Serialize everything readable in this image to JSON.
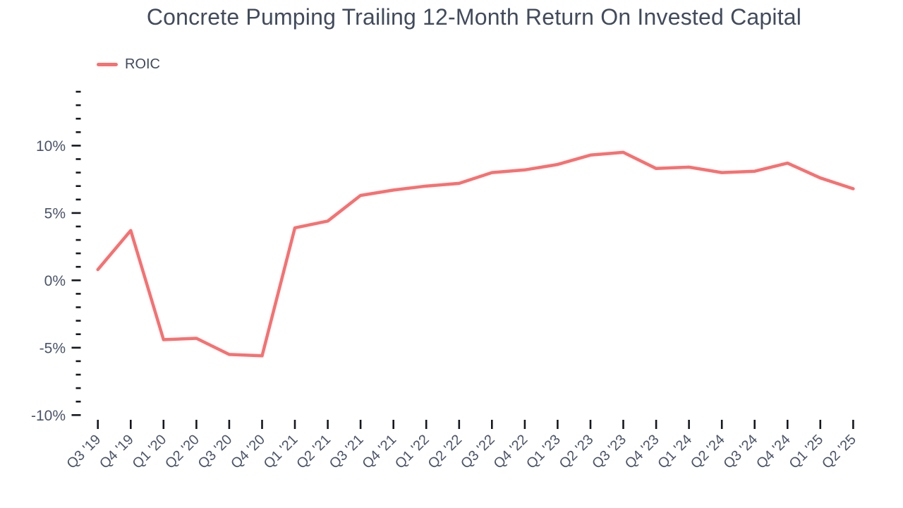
{
  "page": {
    "background": "#ffffff"
  },
  "style": {
    "title_color": "#414b5c",
    "axis_text_color": "#4a5468",
    "tick_color": "#15181e",
    "series_color": "#f87070"
  },
  "chart_data": {
    "type": "line",
    "title": "Concrete Pumping Trailing 12-Month Return On Invested Capital",
    "xlabel": "",
    "ylabel": "",
    "unit": "%",
    "grid": false,
    "legend": {
      "position": "top-left",
      "entries": [
        "ROIC"
      ]
    },
    "categories": [
      "Q3 '19",
      "Q4 '19",
      "Q1 '20",
      "Q2 '20",
      "Q3 '20",
      "Q4 '20",
      "Q1 '21",
      "Q2 '21",
      "Q3 '21",
      "Q4 '21",
      "Q1 '22",
      "Q2 '22",
      "Q3 '22",
      "Q4 '22",
      "Q1 '23",
      "Q2 '23",
      "Q3 '23",
      "Q4 '23",
      "Q1 '24",
      "Q2 '24",
      "Q3 '24",
      "Q4 '24",
      "Q1 '25",
      "Q2 '25"
    ],
    "series": [
      {
        "name": "ROIC",
        "color": "#f87070",
        "values": [
          0.8,
          3.7,
          -4.4,
          -4.3,
          -5.5,
          -5.6,
          3.9,
          4.4,
          6.3,
          6.7,
          7.0,
          7.2,
          8.0,
          8.2,
          8.6,
          9.3,
          9.5,
          8.3,
          8.4,
          8.0,
          8.1,
          8.7,
          7.6,
          6.8
        ]
      }
    ],
    "y_axis": {
      "min": -10,
      "max": 14,
      "minor_tick_step": 1,
      "major_tick_values": [
        -10,
        -5,
        0,
        5,
        10
      ],
      "major_tick_labels": [
        "-10%",
        "-5%",
        "0%",
        "5%",
        "10%"
      ]
    },
    "ylim": [
      -10,
      14
    ]
  }
}
